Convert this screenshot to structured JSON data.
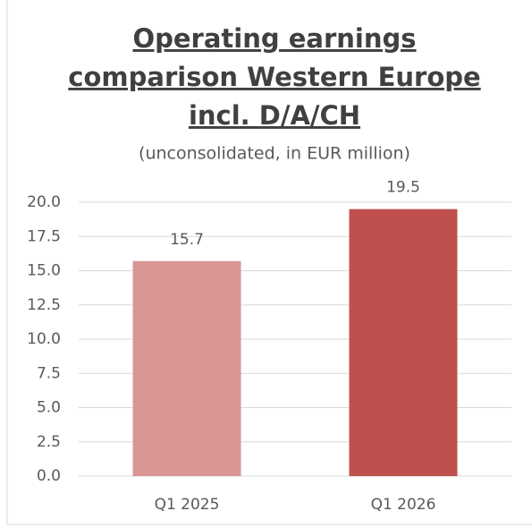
{
  "chart_data": {
    "type": "bar",
    "title": [
      "Operating earnings",
      "comparison Western Europe",
      "incl. D/A/CH"
    ],
    "subtitle": "(unconsolidated, in EUR million)",
    "categories": [
      "Q1 2025",
      "Q1 2026"
    ],
    "values": [
      15.7,
      19.5
    ],
    "colors": [
      "#d99694",
      "#c0504d"
    ],
    "ylim": [
      0,
      20
    ],
    "yticks": [
      {
        "value": 0,
        "label": "0.0"
      },
      {
        "value": 2.5,
        "label": "2.5"
      },
      {
        "value": 5,
        "label": "5.0"
      },
      {
        "value": 7.5,
        "label": "7.5"
      },
      {
        "value": 10,
        "label": "10.0"
      },
      {
        "value": 12.5,
        "label": "12.5"
      },
      {
        "value": 15,
        "label": "15.0"
      },
      {
        "value": 17.5,
        "label": "17.5"
      },
      {
        "value": 20,
        "label": "20.0"
      }
    ],
    "grid": true
  }
}
